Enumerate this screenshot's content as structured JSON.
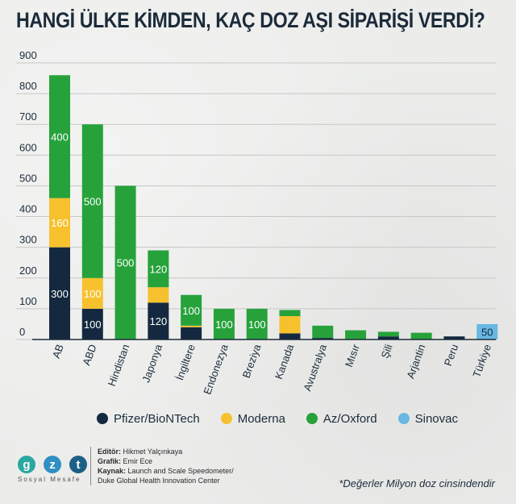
{
  "title": "HANGİ ÜLKE KİMDEN, KAÇ DOZ AŞI SİPARİŞİ VERDİ?",
  "footnote": "*Değerler Milyon doz cinsindendir",
  "credits": {
    "editor_label": "Editör:",
    "editor": "Hikmet Yalçınkaya",
    "graphic_label": "Grafik:",
    "graphic": "Emir Ece",
    "source_label": "Kaynak:",
    "source_line1": "Launch and Scale Speedometer/",
    "source_line2": "Duke Global Health Innovation Center"
  },
  "logo": {
    "letters": [
      "g",
      "z",
      "t"
    ],
    "subtitle": "Sosyal Mesafe"
  },
  "colors": {
    "Pfizer/BioNTech": "#14293f",
    "Moderna": "#f7c12e",
    "Az/Oxford": "#27a23b",
    "Sinovac": "#68b8e2",
    "logo": [
      "#2aa7a0",
      "#2f8fc2",
      "#1d5f86"
    ]
  },
  "chart_data": {
    "type": "bar",
    "stacked": true,
    "categories": [
      "AB",
      "ABD",
      "Hindistan",
      "Japonya",
      "İngiltere",
      "Endonezya",
      "Breziya",
      "Kanada",
      "Avustralya",
      "Mısır",
      "Şili",
      "Arjantin",
      "Peru",
      "Türkiye"
    ],
    "series": [
      {
        "name": "Pfizer/BioNTech",
        "values": [
          300,
          100,
          0,
          120,
          40,
          0,
          0,
          20,
          5,
          0,
          10,
          0,
          10,
          0
        ]
      },
      {
        "name": "Moderna",
        "values": [
          160,
          100,
          0,
          50,
          5,
          0,
          0,
          56,
          0,
          0,
          0,
          0,
          0,
          0
        ]
      },
      {
        "name": "Az/Oxford",
        "values": [
          400,
          500,
          500,
          120,
          100,
          100,
          100,
          20,
          40,
          30,
          15,
          22,
          0,
          0
        ]
      },
      {
        "name": "Sinovac",
        "values": [
          0,
          0,
          0,
          0,
          0,
          0,
          0,
          0,
          0,
          0,
          0,
          0,
          0,
          50
        ]
      }
    ],
    "data_labels": [
      {
        "category": "AB",
        "series": "Pfizer/BioNTech",
        "text": "300"
      },
      {
        "category": "AB",
        "series": "Moderna",
        "text": "160"
      },
      {
        "category": "AB",
        "series": "Az/Oxford",
        "text": "400"
      },
      {
        "category": "ABD",
        "series": "Pfizer/BioNTech",
        "text": "100"
      },
      {
        "category": "ABD",
        "series": "Moderna",
        "text": "100"
      },
      {
        "category": "ABD",
        "series": "Az/Oxford",
        "text": "500"
      },
      {
        "category": "Hindistan",
        "series": "Az/Oxford",
        "text": "500"
      },
      {
        "category": "Japonya",
        "series": "Pfizer/BioNTech",
        "text": "120"
      },
      {
        "category": "Japonya",
        "series": "Az/Oxford",
        "text": "120"
      },
      {
        "category": "İngiltere",
        "series": "Az/Oxford",
        "text": "100"
      },
      {
        "category": "Endonezya",
        "series": "Az/Oxford",
        "text": "100"
      },
      {
        "category": "Breziya",
        "series": "Az/Oxford",
        "text": "100"
      },
      {
        "category": "Türkiye",
        "series": "Sinovac",
        "text": "50"
      }
    ],
    "yticks": [
      "0",
      "100",
      "200",
      "300",
      "400",
      "500",
      "600",
      "700",
      "800",
      "900"
    ],
    "ylim": [
      0,
      900
    ],
    "grid": true,
    "legend": "bottom"
  }
}
